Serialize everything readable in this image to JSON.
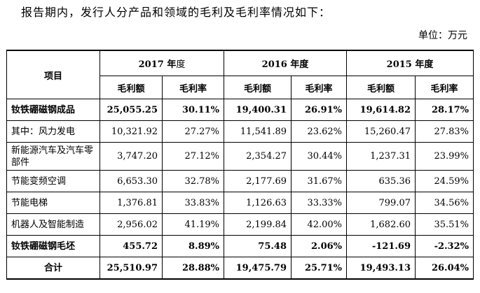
{
  "intro": "报告期内，发行人分产品和领域的毛利及毛利率情况如下：",
  "unit": "单位：万元",
  "table": {
    "item_header": "项目",
    "years": [
      {
        "year": "2017 年",
        "suffix": "度"
      },
      {
        "year": "2016 年度",
        "suffix": ""
      },
      {
        "year": "2015 年度",
        "suffix": ""
      }
    ],
    "sub_headers": [
      "毛利额",
      "毛利率",
      "毛利额",
      "毛利率",
      "毛利额",
      "毛利率"
    ],
    "rows": [
      {
        "label": "钕铁硼磁钢成品",
        "values": [
          "25,055.25",
          "30.11%",
          "19,400.31",
          "26.91%",
          "19,614.82",
          "28.17%"
        ],
        "bold": true
      },
      {
        "label": "其中：风力发电",
        "values": [
          "10,321.92",
          "27.27%",
          "11,541.89",
          "23.62%",
          "15,260.47",
          "27.83%"
        ],
        "bold": false
      },
      {
        "label": "新能源汽车及汽车零部件",
        "values": [
          "3,747.20",
          "27.12%",
          "2,354.27",
          "30.44%",
          "1,237.31",
          "23.99%"
        ],
        "bold": false
      },
      {
        "label": "节能变频空调",
        "values": [
          "6,653.30",
          "32.78%",
          "2,177.69",
          "31.67%",
          "635.36",
          "24.59%"
        ],
        "bold": false
      },
      {
        "label": "节能电梯",
        "values": [
          "1,376.81",
          "33.83%",
          "1,126.63",
          "33.33%",
          "799.07",
          "34.56%"
        ],
        "bold": false
      },
      {
        "label": "机器人及智能制造",
        "values": [
          "2,956.02",
          "41.19%",
          "2,199.84",
          "42.00%",
          "1,682.60",
          "35.51%"
        ],
        "bold": false
      },
      {
        "label": "钕铁硼磁钢毛坯",
        "values": [
          "455.72",
          "8.89%",
          "75.48",
          "2.06%",
          "-121.69",
          "-2.32%"
        ],
        "bold": true
      },
      {
        "label": "合计",
        "values": [
          "25,510.97",
          "28.88%",
          "19,475.79",
          "25.71%",
          "19,493.13",
          "26.04%"
        ],
        "bold": true
      }
    ]
  }
}
